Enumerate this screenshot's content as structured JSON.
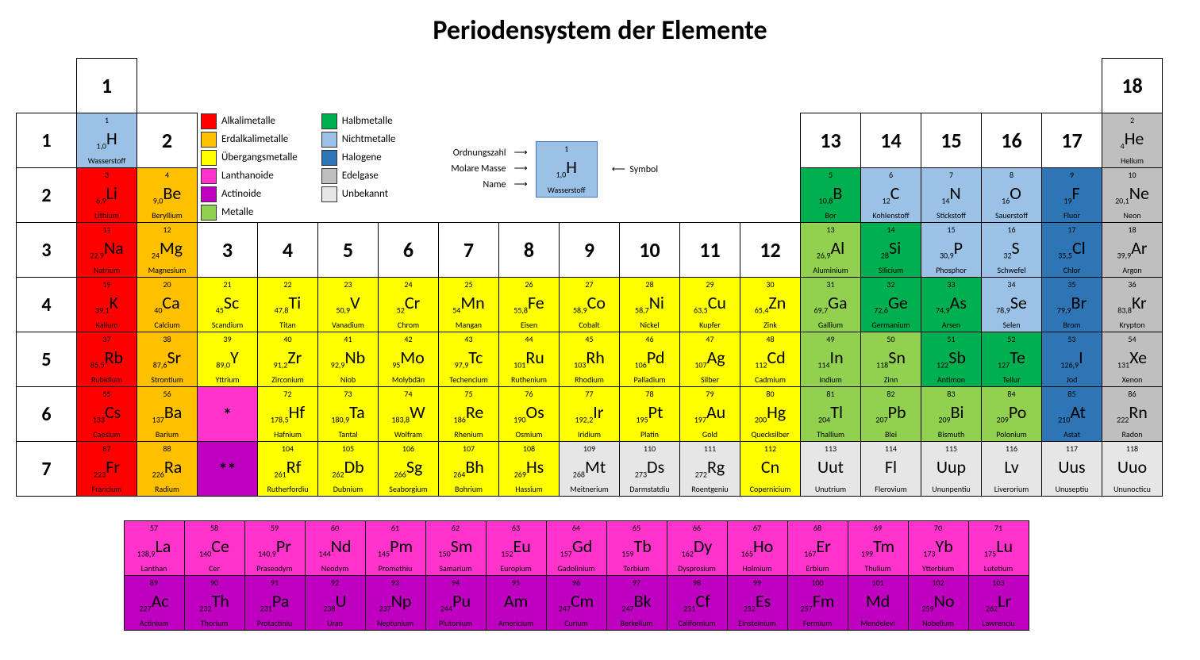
{
  "title": "Periodensystem der Elemente",
  "colors": {
    "alkali": "#ff0000",
    "erdalkali": "#ffc000",
    "uebergang": "#ffff00",
    "lanthanoid": "#ff33cc",
    "actinoid": "#c000c0",
    "metall": "#92d050",
    "halbmetall": "#00b050",
    "nichtmetall": "#9bc2e6",
    "halogen": "#2e75b6",
    "edelgas": "#bfbfbf",
    "unbekannt": "#e7e6e6"
  },
  "legend": [
    {
      "color": "alkali",
      "label": "Alkalimetalle"
    },
    {
      "color": "erdalkali",
      "label": "Erdalkalimetalle"
    },
    {
      "color": "uebergang",
      "label": "Übergangsmetalle"
    },
    {
      "color": "lanthanoid",
      "label": "Lanthanoide"
    },
    {
      "color": "actinoid",
      "label": "Actinoide"
    },
    {
      "color": "metall",
      "label": "Metalle"
    },
    {
      "color": "halbmetall",
      "label": "Halbmetalle"
    },
    {
      "color": "nichtmetall",
      "label": "Nichtmetalle"
    },
    {
      "color": "halogen",
      "label": "Halogene"
    },
    {
      "color": "edelgas",
      "label": "Edelgase"
    },
    {
      "color": "unbekannt",
      "label": "Unbekannt"
    }
  ],
  "key": {
    "ordnungszahl": "Ordnungszahl",
    "molare": "Molare Masse",
    "name": "Name",
    "symbol": "Symbol",
    "ex": {
      "z": "1",
      "mass": "1,0",
      "sym": "H",
      "name": "Wasserstoff",
      "cat": "nichtmetall"
    }
  },
  "groups": [
    "1",
    "2",
    "3",
    "4",
    "5",
    "6",
    "7",
    "8",
    "9",
    "10",
    "11",
    "12",
    "13",
    "14",
    "15",
    "16",
    "17",
    "18"
  ],
  "periods": [
    "1",
    "2",
    "3",
    "4",
    "5",
    "6",
    "7"
  ],
  "elements": [
    {
      "z": 1,
      "s": "H",
      "n": "Wasserstoff",
      "m": "1,0",
      "g": 1,
      "p": 1,
      "c": "nichtmetall"
    },
    {
      "z": 2,
      "s": "He",
      "n": "Helium",
      "m": "4",
      "g": 18,
      "p": 1,
      "c": "edelgas"
    },
    {
      "z": 3,
      "s": "Li",
      "n": "Lithium",
      "m": "6,9",
      "g": 1,
      "p": 2,
      "c": "alkali"
    },
    {
      "z": 4,
      "s": "Be",
      "n": "Beryllium",
      "m": "9,0",
      "g": 2,
      "p": 2,
      "c": "erdalkali"
    },
    {
      "z": 5,
      "s": "B",
      "n": "Bor",
      "m": "10,8",
      "g": 13,
      "p": 2,
      "c": "halbmetall"
    },
    {
      "z": 6,
      "s": "C",
      "n": "Kohlenstoff",
      "m": "12",
      "g": 14,
      "p": 2,
      "c": "nichtmetall"
    },
    {
      "z": 7,
      "s": "N",
      "n": "Stickstoff",
      "m": "14",
      "g": 15,
      "p": 2,
      "c": "nichtmetall"
    },
    {
      "z": 8,
      "s": "O",
      "n": "Sauerstoff",
      "m": "16",
      "g": 16,
      "p": 2,
      "c": "nichtmetall"
    },
    {
      "z": 9,
      "s": "F",
      "n": "Fluor",
      "m": "19",
      "g": 17,
      "p": 2,
      "c": "halogen"
    },
    {
      "z": 10,
      "s": "Ne",
      "n": "Neon",
      "m": "20,1",
      "g": 18,
      "p": 2,
      "c": "edelgas"
    },
    {
      "z": 11,
      "s": "Na",
      "n": "Natrium",
      "m": "22,9",
      "g": 1,
      "p": 3,
      "c": "alkali"
    },
    {
      "z": 12,
      "s": "Mg",
      "n": "Magnesium",
      "m": "24",
      "g": 2,
      "p": 3,
      "c": "erdalkali"
    },
    {
      "z": 13,
      "s": "Al",
      "n": "Aluminium",
      "m": "26,9",
      "g": 13,
      "p": 3,
      "c": "metall"
    },
    {
      "z": 14,
      "s": "Si",
      "n": "Silicium",
      "m": "28",
      "g": 14,
      "p": 3,
      "c": "halbmetall"
    },
    {
      "z": 15,
      "s": "P",
      "n": "Phosphor",
      "m": "30,9",
      "g": 15,
      "p": 3,
      "c": "nichtmetall"
    },
    {
      "z": 16,
      "s": "S",
      "n": "Schwefel",
      "m": "32",
      "g": 16,
      "p": 3,
      "c": "nichtmetall"
    },
    {
      "z": 17,
      "s": "Cl",
      "n": "Chlor",
      "m": "35,5",
      "g": 17,
      "p": 3,
      "c": "halogen"
    },
    {
      "z": 18,
      "s": "Ar",
      "n": "Argon",
      "m": "39,9",
      "g": 18,
      "p": 3,
      "c": "edelgas"
    },
    {
      "z": 19,
      "s": "K",
      "n": "Kalium",
      "m": "39,1",
      "g": 1,
      "p": 4,
      "c": "alkali"
    },
    {
      "z": 20,
      "s": "Ca",
      "n": "Calcium",
      "m": "40",
      "g": 2,
      "p": 4,
      "c": "erdalkali"
    },
    {
      "z": 21,
      "s": "Sc",
      "n": "Scandium",
      "m": "45",
      "g": 3,
      "p": 4,
      "c": "uebergang"
    },
    {
      "z": 22,
      "s": "Ti",
      "n": "Titan",
      "m": "47,8",
      "g": 4,
      "p": 4,
      "c": "uebergang"
    },
    {
      "z": 23,
      "s": "V",
      "n": "Vanadium",
      "m": "50,9",
      "g": 5,
      "p": 4,
      "c": "uebergang"
    },
    {
      "z": 24,
      "s": "Cr",
      "n": "Chrom",
      "m": "52",
      "g": 6,
      "p": 4,
      "c": "uebergang"
    },
    {
      "z": 25,
      "s": "Mn",
      "n": "Mangan",
      "m": "54",
      "g": 7,
      "p": 4,
      "c": "uebergang"
    },
    {
      "z": 26,
      "s": "Fe",
      "n": "Eisen",
      "m": "55,8",
      "g": 8,
      "p": 4,
      "c": "uebergang"
    },
    {
      "z": 27,
      "s": "Co",
      "n": "Cobalt",
      "m": "58,9",
      "g": 9,
      "p": 4,
      "c": "uebergang"
    },
    {
      "z": 28,
      "s": "Ni",
      "n": "Nickel",
      "m": "58,7",
      "g": 10,
      "p": 4,
      "c": "uebergang"
    },
    {
      "z": 29,
      "s": "Cu",
      "n": "Kupfer",
      "m": "63,5",
      "g": 11,
      "p": 4,
      "c": "uebergang"
    },
    {
      "z": 30,
      "s": "Zn",
      "n": "Zink",
      "m": "65,4",
      "g": 12,
      "p": 4,
      "c": "uebergang"
    },
    {
      "z": 31,
      "s": "Ga",
      "n": "Gallium",
      "m": "69,7",
      "g": 13,
      "p": 4,
      "c": "metall"
    },
    {
      "z": 32,
      "s": "Ge",
      "n": "Germanium",
      "m": "72,6",
      "g": 14,
      "p": 4,
      "c": "halbmetall"
    },
    {
      "z": 33,
      "s": "As",
      "n": "Arsen",
      "m": "74,9",
      "g": 15,
      "p": 4,
      "c": "halbmetall"
    },
    {
      "z": 34,
      "s": "Se",
      "n": "Selen",
      "m": "78,9",
      "g": 16,
      "p": 4,
      "c": "nichtmetall"
    },
    {
      "z": 35,
      "s": "Br",
      "n": "Brom",
      "m": "79,9",
      "g": 17,
      "p": 4,
      "c": "halogen"
    },
    {
      "z": 36,
      "s": "Kr",
      "n": "Krypton",
      "m": "83,8",
      "g": 18,
      "p": 4,
      "c": "edelgas"
    },
    {
      "z": 37,
      "s": "Rb",
      "n": "Rubidium",
      "m": "85,5",
      "g": 1,
      "p": 5,
      "c": "alkali"
    },
    {
      "z": 38,
      "s": "Sr",
      "n": "Strontium",
      "m": "87,6",
      "g": 2,
      "p": 5,
      "c": "erdalkali"
    },
    {
      "z": 39,
      "s": "Y",
      "n": "Yttrium",
      "m": "89,0",
      "g": 3,
      "p": 5,
      "c": "uebergang"
    },
    {
      "z": 40,
      "s": "Zr",
      "n": "Zirconium",
      "m": "91,2",
      "g": 4,
      "p": 5,
      "c": "uebergang"
    },
    {
      "z": 41,
      "s": "Nb",
      "n": "Niob",
      "m": "92,9",
      "g": 5,
      "p": 5,
      "c": "uebergang"
    },
    {
      "z": 42,
      "s": "Mo",
      "n": "Molybdän",
      "m": "95",
      "g": 6,
      "p": 5,
      "c": "uebergang"
    },
    {
      "z": 43,
      "s": "Tc",
      "n": "Techencium",
      "m": "97,9",
      "g": 7,
      "p": 5,
      "c": "uebergang"
    },
    {
      "z": 44,
      "s": "Ru",
      "n": "Ruthenium",
      "m": "101",
      "g": 8,
      "p": 5,
      "c": "uebergang"
    },
    {
      "z": 45,
      "s": "Rh",
      "n": "Rhodium",
      "m": "103",
      "g": 9,
      "p": 5,
      "c": "uebergang"
    },
    {
      "z": 46,
      "s": "Pd",
      "n": "Palladium",
      "m": "106",
      "g": 10,
      "p": 5,
      "c": "uebergang"
    },
    {
      "z": 47,
      "s": "Ag",
      "n": "Silber",
      "m": "107",
      "g": 11,
      "p": 5,
      "c": "uebergang"
    },
    {
      "z": 48,
      "s": "Cd",
      "n": "Cadmium",
      "m": "112",
      "g": 12,
      "p": 5,
      "c": "uebergang"
    },
    {
      "z": 49,
      "s": "In",
      "n": "Indium",
      "m": "114",
      "g": 13,
      "p": 5,
      "c": "metall"
    },
    {
      "z": 50,
      "s": "Sn",
      "n": "Zinn",
      "m": "118",
      "g": 14,
      "p": 5,
      "c": "metall"
    },
    {
      "z": 51,
      "s": "Sb",
      "n": "Antimon",
      "m": "122",
      "g": 15,
      "p": 5,
      "c": "halbmetall"
    },
    {
      "z": 52,
      "s": "Te",
      "n": "Tellur",
      "m": "127",
      "g": 16,
      "p": 5,
      "c": "halbmetall"
    },
    {
      "z": 53,
      "s": "I",
      "n": "Jod",
      "m": "126,9",
      "g": 17,
      "p": 5,
      "c": "halogen"
    },
    {
      "z": 54,
      "s": "Xe",
      "n": "Xenon",
      "m": "131",
      "g": 18,
      "p": 5,
      "c": "edelgas"
    },
    {
      "z": 55,
      "s": "Cs",
      "n": "Caesium",
      "m": "133",
      "g": 1,
      "p": 6,
      "c": "alkali"
    },
    {
      "z": 56,
      "s": "Ba",
      "n": "Barium",
      "m": "137",
      "g": 2,
      "p": 6,
      "c": "erdalkali"
    },
    {
      "z": 72,
      "s": "Hf",
      "n": "Hafnium",
      "m": "178,5",
      "g": 4,
      "p": 6,
      "c": "uebergang"
    },
    {
      "z": 73,
      "s": "Ta",
      "n": "Tantal",
      "m": "180,9",
      "g": 5,
      "p": 6,
      "c": "uebergang"
    },
    {
      "z": 74,
      "s": "W",
      "n": "Wolfram",
      "m": "183,8",
      "g": 6,
      "p": 6,
      "c": "uebergang"
    },
    {
      "z": 75,
      "s": "Re",
      "n": "Rhenium",
      "m": "186",
      "g": 7,
      "p": 6,
      "c": "uebergang"
    },
    {
      "z": 76,
      "s": "Os",
      "n": "Osmium",
      "m": "190",
      "g": 8,
      "p": 6,
      "c": "uebergang"
    },
    {
      "z": 77,
      "s": "Ir",
      "n": "Iridium",
      "m": "192,2",
      "g": 9,
      "p": 6,
      "c": "uebergang"
    },
    {
      "z": 78,
      "s": "Pt",
      "n": "Platin",
      "m": "195",
      "g": 10,
      "p": 6,
      "c": "uebergang"
    },
    {
      "z": 79,
      "s": "Au",
      "n": "Gold",
      "m": "197",
      "g": 11,
      "p": 6,
      "c": "uebergang"
    },
    {
      "z": 80,
      "s": "Hg",
      "n": "Quecksilber",
      "m": "200",
      "g": 12,
      "p": 6,
      "c": "uebergang"
    },
    {
      "z": 81,
      "s": "Tl",
      "n": "Thallium",
      "m": "204",
      "g": 13,
      "p": 6,
      "c": "metall"
    },
    {
      "z": 82,
      "s": "Pb",
      "n": "Blei",
      "m": "207",
      "g": 14,
      "p": 6,
      "c": "metall"
    },
    {
      "z": 83,
      "s": "Bi",
      "n": "Bismuth",
      "m": "209",
      "g": 15,
      "p": 6,
      "c": "metall"
    },
    {
      "z": 84,
      "s": "Po",
      "n": "Polonium",
      "m": "209",
      "g": 16,
      "p": 6,
      "c": "metall"
    },
    {
      "z": 85,
      "s": "At",
      "n": "Astat",
      "m": "210",
      "g": 17,
      "p": 6,
      "c": "halogen"
    },
    {
      "z": 86,
      "s": "Rn",
      "n": "Radon",
      "m": "222",
      "g": 18,
      "p": 6,
      "c": "edelgas"
    },
    {
      "z": 87,
      "s": "Fr",
      "n": "Francium",
      "m": "223",
      "g": 1,
      "p": 7,
      "c": "alkali"
    },
    {
      "z": 88,
      "s": "Ra",
      "n": "Radium",
      "m": "226",
      "g": 2,
      "p": 7,
      "c": "erdalkali"
    },
    {
      "z": 104,
      "s": "Rf",
      "n": "Rutherfordiu",
      "m": "261",
      "g": 4,
      "p": 7,
      "c": "uebergang"
    },
    {
      "z": 105,
      "s": "Db",
      "n": "Dubnium",
      "m": "262",
      "g": 5,
      "p": 7,
      "c": "uebergang"
    },
    {
      "z": 106,
      "s": "Sg",
      "n": "Seaborgium",
      "m": "266",
      "g": 6,
      "p": 7,
      "c": "uebergang"
    },
    {
      "z": 107,
      "s": "Bh",
      "n": "Bohrium",
      "m": "264",
      "g": 7,
      "p": 7,
      "c": "uebergang"
    },
    {
      "z": 108,
      "s": "Hs",
      "n": "Hassium",
      "m": "269",
      "g": 8,
      "p": 7,
      "c": "uebergang"
    },
    {
      "z": 109,
      "s": "Mt",
      "n": "Meitnerium",
      "m": "268",
      "g": 9,
      "p": 7,
      "c": "unbekannt"
    },
    {
      "z": 110,
      "s": "Ds",
      "n": "Darmstatdiu",
      "m": "273",
      "g": 10,
      "p": 7,
      "c": "unbekannt"
    },
    {
      "z": 111,
      "s": "Rg",
      "n": "Roentgeniu",
      "m": "272",
      "g": 11,
      "p": 7,
      "c": "unbekannt"
    },
    {
      "z": 112,
      "s": "Cn",
      "n": "Copernicium",
      "m": "",
      "g": 12,
      "p": 7,
      "c": "uebergang"
    },
    {
      "z": 113,
      "s": "Uut",
      "n": "Unutrium",
      "m": "",
      "g": 13,
      "p": 7,
      "c": "unbekannt"
    },
    {
      "z": 114,
      "s": "Fl",
      "n": "Flerovium",
      "m": "",
      "g": 14,
      "p": 7,
      "c": "unbekannt"
    },
    {
      "z": 115,
      "s": "Uup",
      "n": "Ununpentiu",
      "m": "",
      "g": 15,
      "p": 7,
      "c": "unbekannt"
    },
    {
      "z": 116,
      "s": "Lv",
      "n": "Liverorium",
      "m": "",
      "g": 16,
      "p": 7,
      "c": "unbekannt"
    },
    {
      "z": 117,
      "s": "Uus",
      "n": "Unuseptiu",
      "m": "",
      "g": 17,
      "p": 7,
      "c": "unbekannt"
    },
    {
      "z": 118,
      "s": "Uuo",
      "n": "Ununocticu",
      "m": "",
      "g": 18,
      "p": 7,
      "c": "unbekannt"
    }
  ],
  "lanth": [
    {
      "z": 57,
      "s": "La",
      "n": "Lanthan",
      "m": "138,9",
      "c": "lanthanoid"
    },
    {
      "z": 58,
      "s": "Ce",
      "n": "Cer",
      "m": "140",
      "c": "lanthanoid"
    },
    {
      "z": 59,
      "s": "Pr",
      "n": "Praseodym",
      "m": "140,9",
      "c": "lanthanoid"
    },
    {
      "z": 60,
      "s": "Nd",
      "n": "Neodym",
      "m": "144",
      "c": "lanthanoid"
    },
    {
      "z": 61,
      "s": "Pm",
      "n": "Promethiu",
      "m": "145",
      "c": "lanthanoid"
    },
    {
      "z": 62,
      "s": "Sm",
      "n": "Samarium",
      "m": "150",
      "c": "lanthanoid"
    },
    {
      "z": 63,
      "s": "Eu",
      "n": "Europium",
      "m": "152",
      "c": "lanthanoid"
    },
    {
      "z": 64,
      "s": "Gd",
      "n": "Gadolinium",
      "m": "157",
      "c": "lanthanoid"
    },
    {
      "z": 65,
      "s": "Tb",
      "n": "Terbium",
      "m": "159",
      "c": "lanthanoid"
    },
    {
      "z": 66,
      "s": "Dy",
      "n": "Dysprosium",
      "m": "162",
      "c": "lanthanoid"
    },
    {
      "z": 67,
      "s": "Ho",
      "n": "Holmium",
      "m": "165",
      "c": "lanthanoid"
    },
    {
      "z": 68,
      "s": "Er",
      "n": "Erbium",
      "m": "167",
      "c": "lanthanoid"
    },
    {
      "z": 69,
      "s": "Tm",
      "n": "Thulium",
      "m": "199",
      "c": "lanthanoid"
    },
    {
      "z": 70,
      "s": "Yb",
      "n": "Ytterbium",
      "m": "173",
      "c": "lanthanoid"
    },
    {
      "z": 71,
      "s": "Lu",
      "n": "Lutetium",
      "m": "175",
      "c": "lanthanoid"
    }
  ],
  "actin": [
    {
      "z": 89,
      "s": "Ac",
      "n": "Actinium",
      "m": "227",
      "c": "actinoid"
    },
    {
      "z": 90,
      "s": "Th",
      "n": "Thorium",
      "m": "232",
      "c": "actinoid"
    },
    {
      "z": 91,
      "s": "Pa",
      "n": "Protactiniu",
      "m": "231",
      "c": "actinoid"
    },
    {
      "z": 92,
      "s": "U",
      "n": "Uran",
      "m": "238",
      "c": "actinoid"
    },
    {
      "z": 93,
      "s": "Np",
      "n": "Neptunium",
      "m": "237",
      "c": "actinoid"
    },
    {
      "z": 94,
      "s": "Pu",
      "n": "Plutonium",
      "m": "244",
      "c": "actinoid"
    },
    {
      "z": 95,
      "s": "Am",
      "n": "Americium",
      "m": "",
      "c": "actinoid"
    },
    {
      "z": 96,
      "s": "Cm",
      "n": "Curium",
      "m": "247",
      "c": "actinoid"
    },
    {
      "z": 97,
      "s": "Bk",
      "n": "Berkelium",
      "m": "247",
      "c": "actinoid"
    },
    {
      "z": 98,
      "s": "Cf",
      "n": "Californium",
      "m": "251",
      "c": "actinoid"
    },
    {
      "z": 99,
      "s": "Es",
      "n": "Einsteinium",
      "m": "252",
      "c": "actinoid"
    },
    {
      "z": 100,
      "s": "Fm",
      "n": "Fermium",
      "m": "257",
      "c": "actinoid"
    },
    {
      "z": 101,
      "s": "Md",
      "n": "Mendelevi",
      "m": "",
      "c": "actinoid"
    },
    {
      "z": 102,
      "s": "No",
      "n": "Nobelium",
      "m": "259",
      "c": "actinoid"
    },
    {
      "z": 103,
      "s": "Lr",
      "n": "Lawrenciu",
      "m": "262",
      "c": "actinoid"
    }
  ],
  "stars": {
    "p6": "*",
    "p7": "**"
  }
}
